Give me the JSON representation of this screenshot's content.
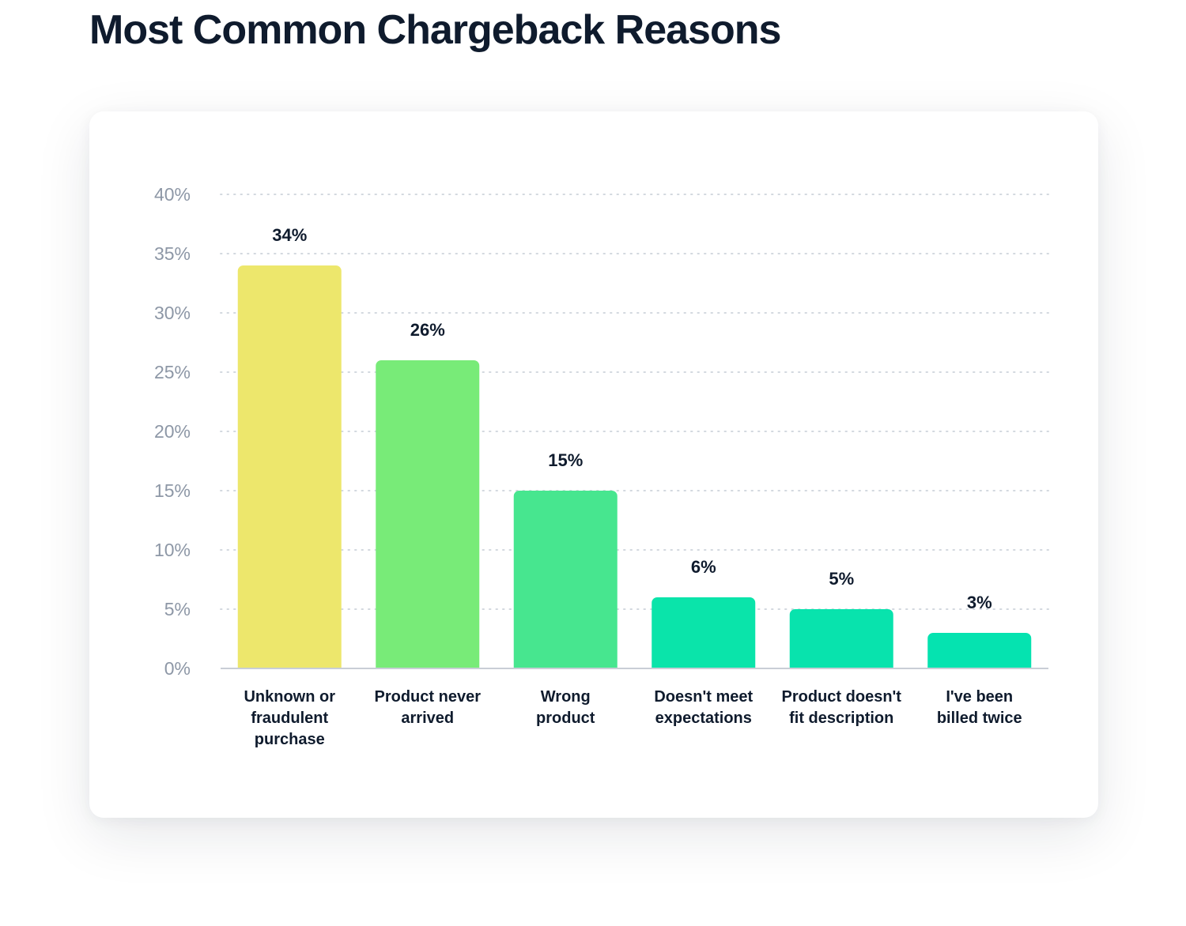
{
  "title": "Most Common Chargeback Reasons",
  "chart_data": {
    "type": "bar",
    "title": "Most Common Chargeback Reasons",
    "xlabel": "",
    "ylabel": "",
    "categories": [
      "Unknown or fraudulent purchase",
      "Product never arrived",
      "Wrong product",
      "Doesn't meet expectations",
      "Product doesn't fit description",
      "I've been billed twice"
    ],
    "category_label_lines": [
      [
        "Unknown or",
        "fraudulent",
        "purchase"
      ],
      [
        "Product never",
        "arrived"
      ],
      [
        "Wrong",
        "product"
      ],
      [
        "Doesn't meet",
        "expectations"
      ],
      [
        "Product doesn't",
        "fit description"
      ],
      [
        "I've been",
        "billed twice"
      ]
    ],
    "values": [
      34,
      26,
      15,
      6,
      5,
      3
    ],
    "value_labels": [
      "34%",
      "26%",
      "15%",
      "6%",
      "5%",
      "3%"
    ],
    "bar_colors": [
      "#ede76c",
      "#78eb78",
      "#47e68f",
      "#0ae4aa",
      "#08e3ad",
      "#05e3b0"
    ],
    "ylim": [
      0,
      40
    ],
    "y_ticks": [
      0,
      5,
      10,
      15,
      20,
      25,
      30,
      35,
      40
    ],
    "y_tick_labels": [
      "0%",
      "5%",
      "10%",
      "15%",
      "20%",
      "25%",
      "30%",
      "35%",
      "40%"
    ],
    "grid": true,
    "grid_style": "dotted",
    "legend": "none"
  }
}
